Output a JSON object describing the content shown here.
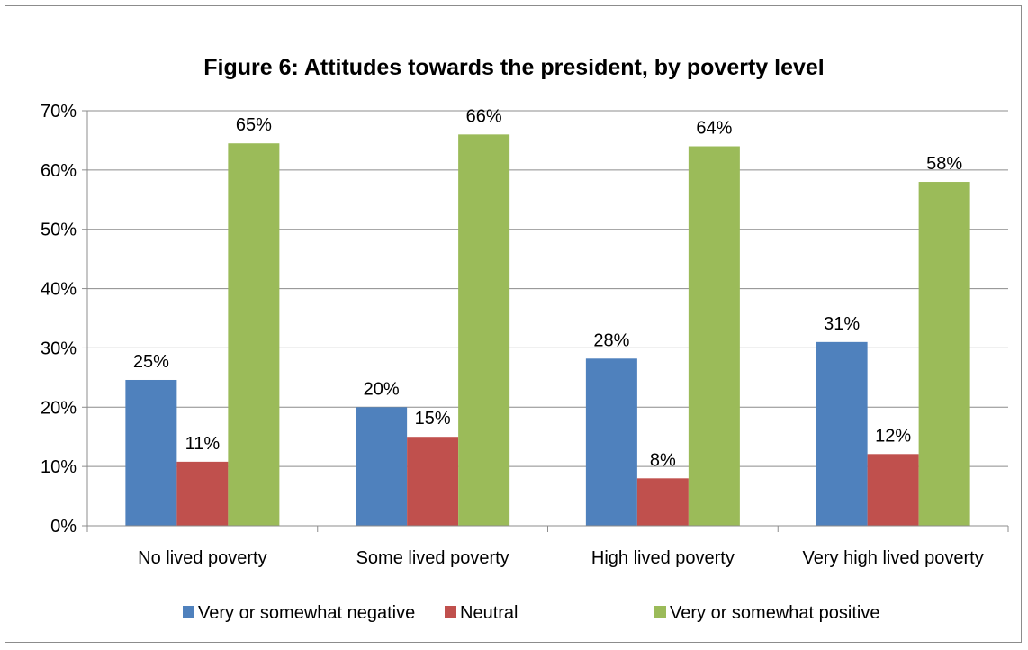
{
  "chart_data": {
    "type": "bar",
    "title": "Figure 6: Attitudes towards the president, by poverty level",
    "xlabel": "",
    "ylabel": "",
    "categories": [
      "No lived poverty",
      "Some lived poverty",
      "High lived poverty",
      "Very high lived poverty"
    ],
    "series": [
      {
        "name": "Very or somewhat negative",
        "values": [
          0.246,
          0.2,
          0.282,
          0.31
        ],
        "labels": [
          "25%",
          "20%",
          "28%",
          "31%"
        ],
        "color": "#4f81bd"
      },
      {
        "name": "Neutral",
        "values": [
          0.108,
          0.15,
          0.08,
          0.121
        ],
        "labels": [
          "11%",
          "15%",
          "8%",
          "12%"
        ],
        "color": "#c0504d"
      },
      {
        "name": "Very or somewhat positive",
        "values": [
          0.645,
          0.66,
          0.64,
          0.58
        ],
        "labels": [
          "65%",
          "66%",
          "64%",
          "58%"
        ],
        "color": "#9bbb59"
      }
    ],
    "ylim": [
      0,
      0.7
    ],
    "yticks": [
      0,
      0.1,
      0.2,
      0.3,
      0.4,
      0.5,
      0.6,
      0.7
    ],
    "ytick_labels": [
      "0%",
      "10%",
      "20%",
      "30%",
      "40%",
      "50%",
      "60%",
      "70%"
    ],
    "grid": true,
    "legend_position": "bottom"
  }
}
